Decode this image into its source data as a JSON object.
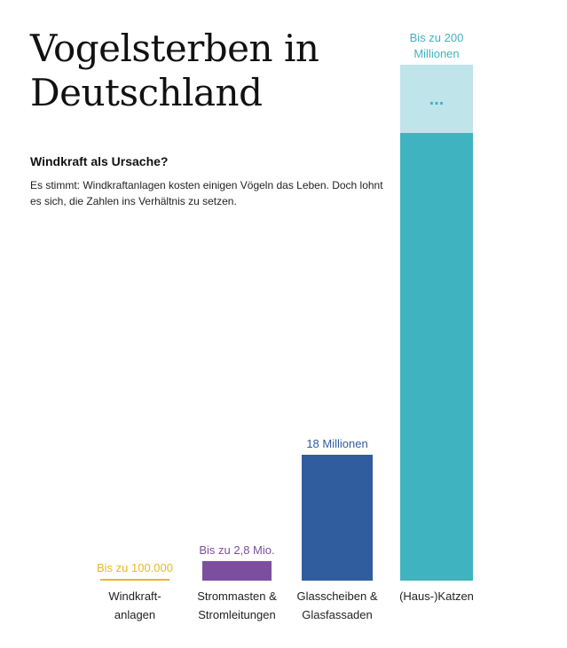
{
  "title": "Vogelsterben in Deutschland",
  "subtitle": "Windkraft als Ursache?",
  "description": "Es stimmt: Windkraftanlagen kosten einigen Vögeln das Leben. Doch lohnt es sich, die Zahlen ins Verhältnis zu setzen.",
  "chart_data": {
    "type": "bar",
    "title": "Vogelsterben in Deutschland",
    "subtitle": "Windkraft als Ursache?",
    "xlabel": "",
    "ylabel": "",
    "grid": false,
    "legend": "none",
    "truncated_bar_index": 3,
    "bars": [
      {
        "category_lines": [
          "Windkraft-",
          "anlagen"
        ],
        "value_label_lines": [
          "Bis zu 100.000"
        ],
        "value": 100000,
        "color": "#e8b923"
      },
      {
        "category_lines": [
          "Strommasten &",
          "Stromleitungen"
        ],
        "value_label_lines": [
          "Bis zu 2,8 Mio."
        ],
        "value": 2800000,
        "color": "#7b4f9e"
      },
      {
        "category_lines": [
          "Glasscheiben &",
          "Glasfassaden"
        ],
        "value_label_lines": [
          "18 Millionen"
        ],
        "value": 18000000,
        "color": "#2f5d9e"
      },
      {
        "category_lines": [
          "(Haus-)Katzen"
        ],
        "value_label_lines": [
          "Bis zu 200",
          "Millionen"
        ],
        "value": 200000000,
        "color": "#3fb3bf",
        "break_color": "#bfe4e9",
        "break_symbol": "..."
      }
    ]
  }
}
